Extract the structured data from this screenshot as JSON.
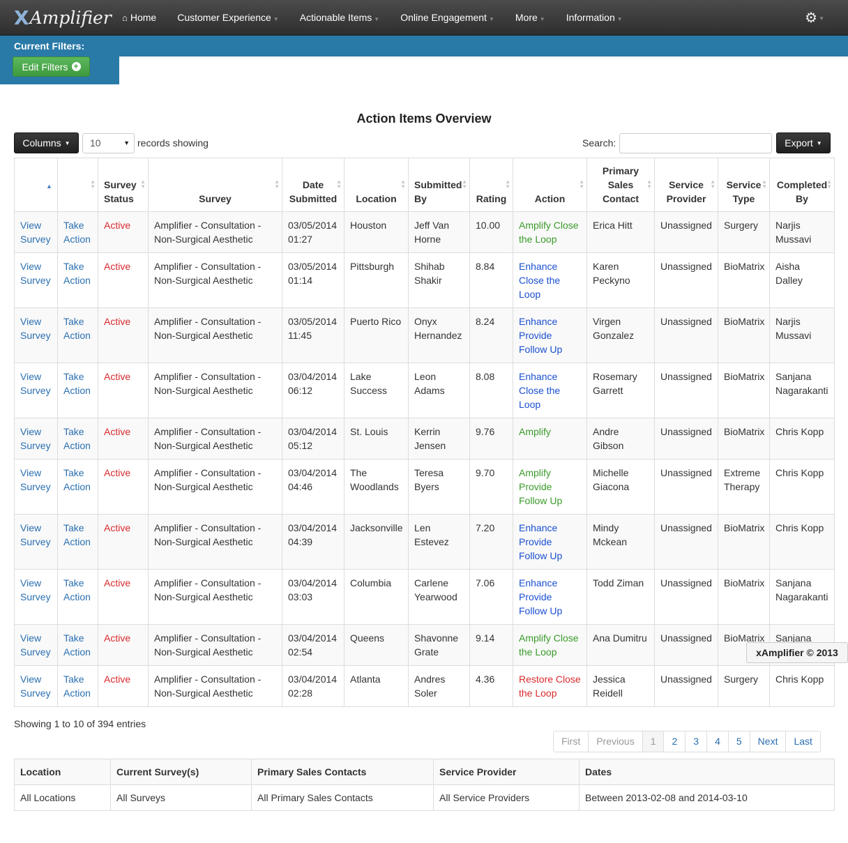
{
  "navbar": {
    "brand_x": "X",
    "brand_text": "Amplifier",
    "items": [
      {
        "label": "Home",
        "icon": "home-icon"
      },
      {
        "label": "Customer Experience",
        "caret": true
      },
      {
        "label": "Actionable Items",
        "caret": true
      },
      {
        "label": "Online Engagement",
        "caret": true
      },
      {
        "label": "More",
        "caret": true
      },
      {
        "label": "Information",
        "caret": true
      }
    ],
    "settings_icon": "gear-icon"
  },
  "filters": {
    "title": "Current Filters:",
    "edit_label": "Edit Filters"
  },
  "page_title": "Action Items Overview",
  "controls": {
    "columns_label": "Columns",
    "records_value": "10",
    "records_text": "records showing",
    "search_label": "Search:",
    "export_label": "Export"
  },
  "table": {
    "headers": [
      "",
      "",
      "Survey Status",
      "Survey",
      "Date Submitted",
      "Location",
      "Submitted By",
      "Rating",
      "Action",
      "Primary Sales Contact",
      "Service Provider",
      "Service Type",
      "Completed By"
    ],
    "rows": [
      {
        "view": "View Survey",
        "take": "Take Action",
        "status": "Active",
        "survey": "Amplifier - Consultation - Non-Surgical Aesthetic",
        "date": "03/05/2014 01:27",
        "location": "Houston",
        "submitted_by": "Jeff Van Horne",
        "rating": "10.00",
        "action": "Amplify Close the Loop",
        "action_color": "green",
        "contact": "Erica Hitt",
        "provider": "Unassigned",
        "type": "Surgery",
        "completed_by": "Narjis Mussavi"
      },
      {
        "view": "View Survey",
        "take": "Take Action",
        "status": "Active",
        "survey": "Amplifier - Consultation - Non-Surgical Aesthetic",
        "date": "03/05/2014 01:14",
        "location": "Pittsburgh",
        "submitted_by": "Shihab Shakir",
        "rating": "8.84",
        "action": "Enhance Close the Loop",
        "action_color": "blue",
        "contact": "Karen Peckyno",
        "provider": "Unassigned",
        "type": "BioMatrix",
        "completed_by": "Aisha Dalley"
      },
      {
        "view": "View Survey",
        "take": "Take Action",
        "status": "Active",
        "survey": "Amplifier - Consultation - Non-Surgical Aesthetic",
        "date": "03/05/2014 11:45",
        "location": "Puerto Rico",
        "submitted_by": "Onyx Hernandez",
        "rating": "8.24",
        "action": "Enhance Provide Follow Up",
        "action_color": "blue",
        "contact": "Virgen Gonzalez",
        "provider": "Unassigned",
        "type": "BioMatrix",
        "completed_by": "Narjis Mussavi"
      },
      {
        "view": "View Survey",
        "take": "Take Action",
        "status": "Active",
        "survey": "Amplifier - Consultation - Non-Surgical Aesthetic",
        "date": "03/04/2014 06:12",
        "location": "Lake Success",
        "submitted_by": "Leon Adams",
        "rating": "8.08",
        "action": "Enhance Close the Loop",
        "action_color": "blue",
        "contact": "Rosemary Garrett",
        "provider": "Unassigned",
        "type": "BioMatrix",
        "completed_by": "Sanjana Nagarakanti"
      },
      {
        "view": "View Survey",
        "take": "Take Action",
        "status": "Active",
        "survey": "Amplifier - Consultation - Non-Surgical Aesthetic",
        "date": "03/04/2014 05:12",
        "location": "St. Louis",
        "submitted_by": "Kerrin Jensen",
        "rating": "9.76",
        "action": "Amplify",
        "action_color": "green",
        "contact": "Andre Gibson",
        "provider": "Unassigned",
        "type": "BioMatrix",
        "completed_by": "Chris Kopp"
      },
      {
        "view": "View Survey",
        "take": "Take Action",
        "status": "Active",
        "survey": "Amplifier - Consultation - Non-Surgical Aesthetic",
        "date": "03/04/2014 04:46",
        "location": "The Woodlands",
        "submitted_by": "Teresa Byers",
        "rating": "9.70",
        "action": "Amplify Provide Follow Up",
        "action_color": "green",
        "contact": "Michelle Giacona",
        "provider": "Unassigned",
        "type": "Extreme Therapy",
        "completed_by": "Chris Kopp"
      },
      {
        "view": "View Survey",
        "take": "Take Action",
        "status": "Active",
        "survey": "Amplifier - Consultation - Non-Surgical Aesthetic",
        "date": "03/04/2014 04:39",
        "location": "Jacksonville",
        "submitted_by": "Len Estevez",
        "rating": "7.20",
        "action": "Enhance Provide Follow Up",
        "action_color": "blue",
        "contact": "Mindy Mckean",
        "provider": "Unassigned",
        "type": "BioMatrix",
        "completed_by": "Chris Kopp"
      },
      {
        "view": "View Survey",
        "take": "Take Action",
        "status": "Active",
        "survey": "Amplifier - Consultation - Non-Surgical Aesthetic",
        "date": "03/04/2014 03:03",
        "location": "Columbia",
        "submitted_by": "Carlene Yearwood",
        "rating": "7.06",
        "action": "Enhance Provide Follow Up",
        "action_color": "blue",
        "contact": "Todd Ziman",
        "provider": "Unassigned",
        "type": "BioMatrix",
        "completed_by": "Sanjana Nagarakanti"
      },
      {
        "view": "View Survey",
        "take": "Take Action",
        "status": "Active",
        "survey": "Amplifier - Consultation - Non-Surgical Aesthetic",
        "date": "03/04/2014 02:54",
        "location": "Queens",
        "submitted_by": "Shavonne Grate",
        "rating": "9.14",
        "action": "Amplify Close the Loop",
        "action_color": "green",
        "contact": "Ana Dumitru",
        "provider": "Unassigned",
        "type": "BioMatrix",
        "completed_by": "Sanjana Nagarakanti"
      },
      {
        "view": "View Survey",
        "take": "Take Action",
        "status": "Active",
        "survey": "Amplifier - Consultation - Non-Surgical Aesthetic",
        "date": "03/04/2014 02:28",
        "location": "Atlanta",
        "submitted_by": "Andres Soler",
        "rating": "4.36",
        "action": "Restore Close the Loop",
        "action_color": "red",
        "contact": "Jessica Reidell",
        "provider": "Unassigned",
        "type": "Surgery",
        "completed_by": "Chris Kopp"
      }
    ]
  },
  "showing_text": "Showing 1 to 10 of 394 entries",
  "pagination": {
    "first": "First",
    "previous": "Previous",
    "pages": [
      "1",
      "2",
      "3",
      "4",
      "5"
    ],
    "next": "Next",
    "last": "Last"
  },
  "tooltip": "xAmplifier © 2013",
  "summary": {
    "headers": [
      "Location",
      "Current Survey(s)",
      "Primary Sales Contacts",
      "Service Provider",
      "Dates"
    ],
    "values": [
      "All Locations",
      "All Surveys",
      "All Primary Sales Contacts",
      "All Service Providers",
      "Between 2013-02-08 and 2014-03-10"
    ]
  },
  "colors": {
    "navbar": "#3a3a3a",
    "filterbar": "#2a7aa8",
    "success": "#4aa84a",
    "link": "#2a6fb0",
    "status_active": "#d9292c"
  }
}
